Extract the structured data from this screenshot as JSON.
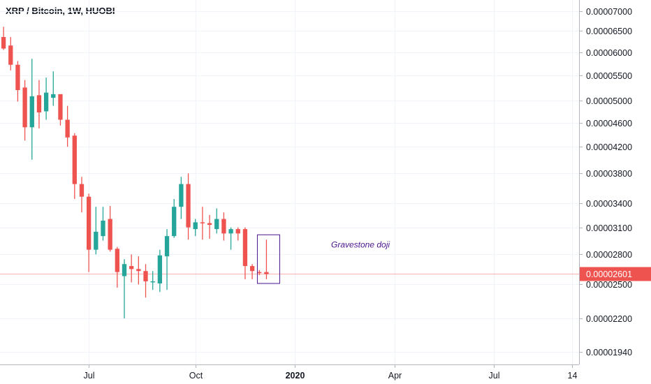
{
  "header": {
    "title": "XRP / Bitcoin, 1W, HUOBI"
  },
  "colors": {
    "up": "#26a69a",
    "down": "#ef5350",
    "price_line": "#ef5350",
    "annotation": "#4a148c"
  },
  "chart_data": {
    "type": "candlestick",
    "title": "XRP / Bitcoin, 1W, HUOBI",
    "y_scale": "log",
    "ylim": [
      1.85e-05,
      7.3e-05
    ],
    "y_ticks": [
      "0.00007000",
      "0.00006500",
      "0.00006000",
      "0.00005500",
      "0.00005000",
      "0.00004600",
      "0.00004200",
      "0.00003800",
      "0.00003400",
      "0.00003100",
      "0.00002800",
      "0.00002500",
      "0.00002200",
      "0.00001940"
    ],
    "x_ticks": [
      {
        "label": "Jul",
        "bold": false,
        "week_index": 12
      },
      {
        "label": "Oct",
        "bold": false,
        "week_index": 27
      },
      {
        "label": "2020",
        "bold": true,
        "week_index": 41
      },
      {
        "label": "Apr",
        "bold": false,
        "week_index": 55
      },
      {
        "label": "Jul",
        "bold": false,
        "week_index": 69
      },
      {
        "label": "14",
        "bold": false,
        "week_index": 80
      }
    ],
    "x_range_weeks": [
      -0.5,
      81
    ],
    "last_price": "0.00002601",
    "candles": [
      {
        "o": 6.35e-05,
        "h": 6.6e-05,
        "l": 6.05e-05,
        "c": 6.08e-05
      },
      {
        "o": 6.15e-05,
        "h": 6.35e-05,
        "l": 5.6e-05,
        "c": 5.72e-05
      },
      {
        "o": 5.72e-05,
        "h": 5.8e-05,
        "l": 4.98e-05,
        "c": 5.2e-05
      },
      {
        "o": 5.25e-05,
        "h": 5.4e-05,
        "l": 4.3e-05,
        "c": 4.52e-05
      },
      {
        "o": 4.52e-05,
        "h": 5.85e-05,
        "l": 4e-05,
        "c": 5.08e-05
      },
      {
        "o": 5.1e-05,
        "h": 5.4e-05,
        "l": 4.5e-05,
        "c": 4.78e-05
      },
      {
        "o": 4.8e-05,
        "h": 5.45e-05,
        "l": 4.65e-05,
        "c": 5.15e-05
      },
      {
        "o": 5.05e-05,
        "h": 5.58e-05,
        "l": 4.9e-05,
        "c": 5.12e-05
      },
      {
        "o": 5.12e-05,
        "h": 5.12e-05,
        "l": 4.55e-05,
        "c": 4.65e-05
      },
      {
        "o": 4.65e-05,
        "h": 4.9e-05,
        "l": 4.2e-05,
        "c": 4.35e-05
      },
      {
        "o": 4.38e-05,
        "h": 4.42e-05,
        "l": 3.45e-05,
        "c": 3.65e-05
      },
      {
        "o": 3.65e-05,
        "h": 3.75e-05,
        "l": 3.28e-05,
        "c": 3.48e-05
      },
      {
        "o": 3.48e-05,
        "h": 3.52e-05,
        "l": 2.62e-05,
        "c": 2.85e-05
      },
      {
        "o": 2.85e-05,
        "h": 3.35e-05,
        "l": 2.8e-05,
        "c": 3.05e-05
      },
      {
        "o": 3e-05,
        "h": 3.35e-05,
        "l": 2.95e-05,
        "c": 3.18e-05
      },
      {
        "o": 3.2e-05,
        "h": 3.36e-05,
        "l": 2.83e-05,
        "c": 2.85e-05
      },
      {
        "o": 2.86e-05,
        "h": 2.88e-05,
        "l": 2.47e-05,
        "c": 2.62e-05
      },
      {
        "o": 2.58e-05,
        "h": 2.75e-05,
        "l": 2.2e-05,
        "c": 2.7e-05
      },
      {
        "o": 2.68e-05,
        "h": 2.8e-05,
        "l": 2.52e-05,
        "c": 2.65e-05
      },
      {
        "o": 2.65e-05,
        "h": 2.78e-05,
        "l": 2.5e-05,
        "c": 2.63e-05
      },
      {
        "o": 2.63e-05,
        "h": 2.7e-05,
        "l": 2.38e-05,
        "c": 2.53e-05
      },
      {
        "o": 2.53e-05,
        "h": 2.63e-05,
        "l": 2.45e-05,
        "c": 2.53e-05
      },
      {
        "o": 2.51e-05,
        "h": 2.85e-05,
        "l": 2.43e-05,
        "c": 2.79e-05
      },
      {
        "o": 2.78e-05,
        "h": 3.08e-05,
        "l": 2.45e-05,
        "c": 3e-05
      },
      {
        "o": 3e-05,
        "h": 3.45e-05,
        "l": 2.98e-05,
        "c": 3.35e-05
      },
      {
        "o": 3.35e-05,
        "h": 3.75e-05,
        "l": 3.2e-05,
        "c": 3.65e-05
      },
      {
        "o": 3.65e-05,
        "h": 3.8e-05,
        "l": 2.96e-05,
        "c": 3.1e-05
      },
      {
        "o": 3.08e-05,
        "h": 3.2e-05,
        "l": 3e-05,
        "c": 3.16e-05
      },
      {
        "o": 3.16e-05,
        "h": 3.35e-05,
        "l": 2.96e-05,
        "c": 3.15e-05
      },
      {
        "o": 3.15e-05,
        "h": 3.25e-05,
        "l": 2.97e-05,
        "c": 3.13e-05
      },
      {
        "o": 3.08e-05,
        "h": 3.33e-05,
        "l": 3.03e-05,
        "c": 3.2e-05
      },
      {
        "o": 3.2e-05,
        "h": 3.28e-05,
        "l": 2.95e-05,
        "c": 3.03e-05
      },
      {
        "o": 3.03e-05,
        "h": 3.1e-05,
        "l": 2.85e-05,
        "c": 3.08e-05
      },
      {
        "o": 3.08e-05,
        "h": 3.1e-05,
        "l": 2.95e-05,
        "c": 3.03e-05
      },
      {
        "o": 3.08e-05,
        "h": 3.1e-05,
        "l": 2.55e-05,
        "c": 2.68e-05
      },
      {
        "o": 2.68e-05,
        "h": 2.7e-05,
        "l": 2.55e-05,
        "c": 2.63e-05
      },
      {
        "o": 2.62e-05,
        "h": 2.64e-05,
        "l": 2.59e-05,
        "c": 2.61e-05
      },
      {
        "o": 2.62e-05,
        "h": 2.96e-05,
        "l": 2.55e-05,
        "c": 2.6e-05
      }
    ],
    "annotation": {
      "text": "Gravestone doji",
      "candle_index": 37
    }
  }
}
